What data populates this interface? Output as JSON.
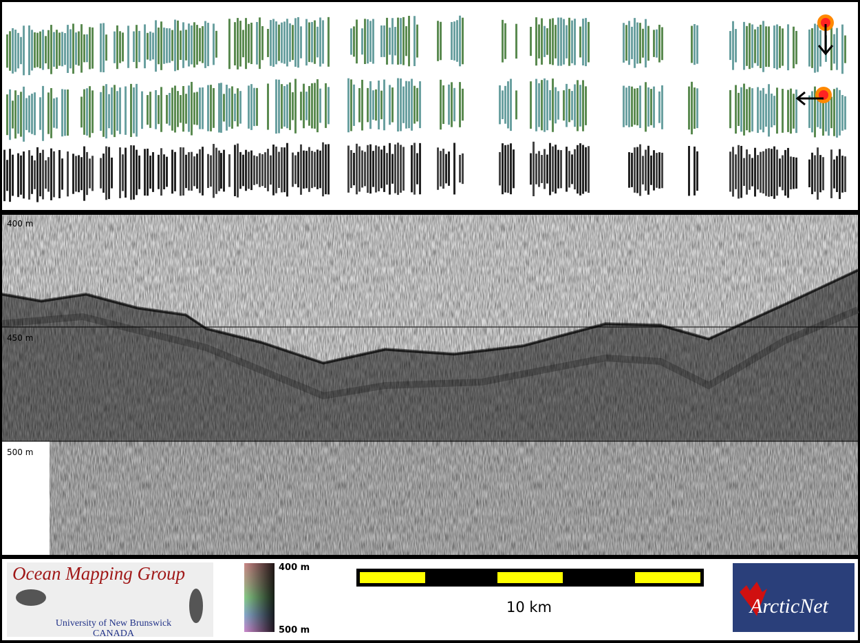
{
  "profile": {
    "depth_labels": [
      "400 m",
      "450 m",
      "500 m"
    ]
  },
  "footer": {
    "logo": {
      "title": "Ocean Mapping Group",
      "university": "University of New Brunswick",
      "country": "CANADA"
    },
    "colorbar": {
      "top": "400 m",
      "bottom": "500 m"
    },
    "scale_bar": {
      "label": "10 km"
    },
    "partner_logo": "ArcticNet"
  }
}
